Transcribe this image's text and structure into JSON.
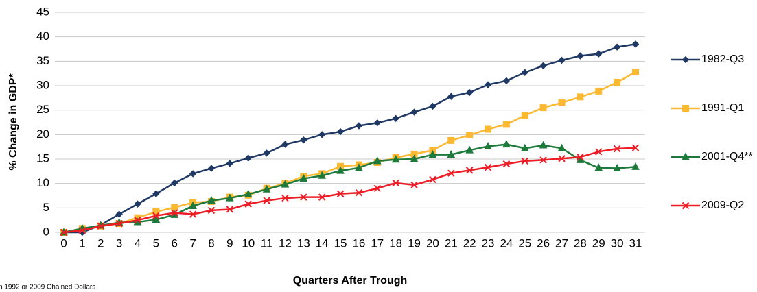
{
  "chart_data": {
    "type": "line",
    "ylabel": "% Change in GDP*",
    "xlabel": "Quarters After Trough",
    "footnote": "n 1992 or 2009 Chained Dollars",
    "x": [
      0,
      1,
      2,
      3,
      4,
      5,
      6,
      7,
      8,
      9,
      10,
      11,
      12,
      13,
      14,
      15,
      16,
      17,
      18,
      19,
      20,
      21,
      22,
      23,
      24,
      25,
      26,
      27,
      28,
      29,
      30,
      31
    ],
    "xlim": [
      0,
      31
    ],
    "xticks": [
      0,
      1,
      2,
      3,
      4,
      5,
      6,
      7,
      8,
      9,
      10,
      11,
      12,
      13,
      14,
      15,
      16,
      17,
      18,
      19,
      20,
      21,
      22,
      23,
      24,
      25,
      26,
      27,
      28,
      29,
      30,
      31
    ],
    "ylim": [
      0,
      45
    ],
    "yticks": [
      0,
      5,
      10,
      15,
      20,
      25,
      30,
      35,
      40,
      45
    ],
    "grid": true,
    "legend": "right",
    "series": [
      {
        "name": "1982-Q3",
        "color": "#1f3864",
        "marker": "diamond",
        "values": [
          0,
          0,
          1.5,
          3.7,
          5.8,
          7.9,
          10.1,
          12.0,
          13.1,
          14.1,
          15.2,
          16.2,
          18.0,
          18.9,
          20.0,
          20.6,
          21.8,
          22.4,
          23.3,
          24.6,
          25.8,
          27.8,
          28.6,
          30.2,
          31.0,
          32.7,
          34.1,
          35.2,
          36.1,
          36.5,
          37.9,
          38.5
        ]
      },
      {
        "name": "1991-Q1",
        "color": "#fbb832",
        "marker": "square",
        "values": [
          0,
          0.8,
          1.3,
          1.8,
          3.0,
          4.2,
          5.1,
          6.1,
          6.3,
          7.2,
          7.6,
          9.0,
          10.0,
          11.5,
          12.0,
          13.5,
          13.8,
          14.3,
          15.3,
          16.0,
          16.8,
          18.8,
          19.9,
          21.1,
          22.1,
          23.9,
          25.5,
          26.5,
          27.7,
          28.9,
          30.7,
          32.8
        ]
      },
      {
        "name": "2001-Q4**",
        "color": "#1e7a3b",
        "marker": "triangle",
        "values": [
          0,
          0.8,
          1.4,
          2.0,
          2.1,
          2.6,
          3.6,
          5.4,
          6.5,
          7.0,
          7.8,
          8.8,
          9.8,
          11.0,
          11.6,
          12.6,
          13.2,
          14.6,
          14.9,
          15.0,
          15.9,
          15.9,
          16.8,
          17.6,
          18.0,
          17.2,
          17.8,
          17.2,
          14.8,
          13.2,
          13.1,
          13.4
        ]
      },
      {
        "name": "2009-Q2",
        "color": "#ee1c25",
        "marker": "x",
        "values": [
          0,
          0.4,
          1.3,
          1.8,
          2.5,
          3.4,
          4.0,
          3.7,
          4.5,
          4.7,
          5.8,
          6.5,
          7.0,
          7.2,
          7.2,
          7.9,
          8.1,
          9.0,
          10.1,
          9.7,
          10.8,
          12.1,
          12.7,
          13.3,
          14.0,
          14.6,
          14.8,
          15.1,
          15.4,
          16.5,
          17.1,
          17.3
        ]
      }
    ]
  }
}
